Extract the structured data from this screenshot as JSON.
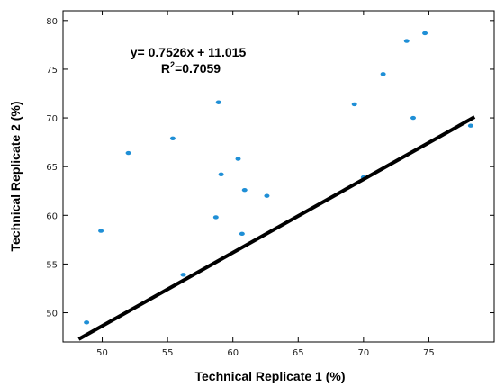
{
  "chart_data": {
    "type": "scatter",
    "title": "",
    "xlabel": "Technical Replicate 1 (%)",
    "ylabel": "Technical Replicate 2 (%)",
    "xlim": [
      47,
      80
    ],
    "ylim": [
      47,
      81
    ],
    "x_ticks": [
      50,
      55,
      60,
      65,
      70,
      75
    ],
    "y_ticks": [
      50,
      55,
      60,
      65,
      70,
      75,
      80
    ],
    "grid": false,
    "point_color": "#1f8fd6",
    "trendline_color": "#000000",
    "points": [
      {
        "x": 48.8,
        "y": 49.0
      },
      {
        "x": 49.9,
        "y": 58.4
      },
      {
        "x": 52.0,
        "y": 66.4
      },
      {
        "x": 55.4,
        "y": 67.9
      },
      {
        "x": 56.2,
        "y": 53.9
      },
      {
        "x": 58.7,
        "y": 59.8
      },
      {
        "x": 58.9,
        "y": 71.6
      },
      {
        "x": 59.1,
        "y": 64.2
      },
      {
        "x": 60.4,
        "y": 65.8
      },
      {
        "x": 60.7,
        "y": 58.1
      },
      {
        "x": 60.9,
        "y": 62.6
      },
      {
        "x": 62.6,
        "y": 62.0
      },
      {
        "x": 69.3,
        "y": 71.4
      },
      {
        "x": 70.0,
        "y": 63.9
      },
      {
        "x": 71.5,
        "y": 74.5
      },
      {
        "x": 73.3,
        "y": 77.9
      },
      {
        "x": 73.8,
        "y": 70.0
      },
      {
        "x": 74.7,
        "y": 78.7
      },
      {
        "x": 78.2,
        "y": 69.2
      }
    ],
    "trendline": {
      "slope": 0.7526,
      "intercept": 11.015,
      "x_range": [
        48.2,
        78.5
      ],
      "equation_text": "y= 0.7526x + 11.015",
      "r2_prefix": "R",
      "r2_sup": "2",
      "r2_value": "=0.7059"
    }
  }
}
